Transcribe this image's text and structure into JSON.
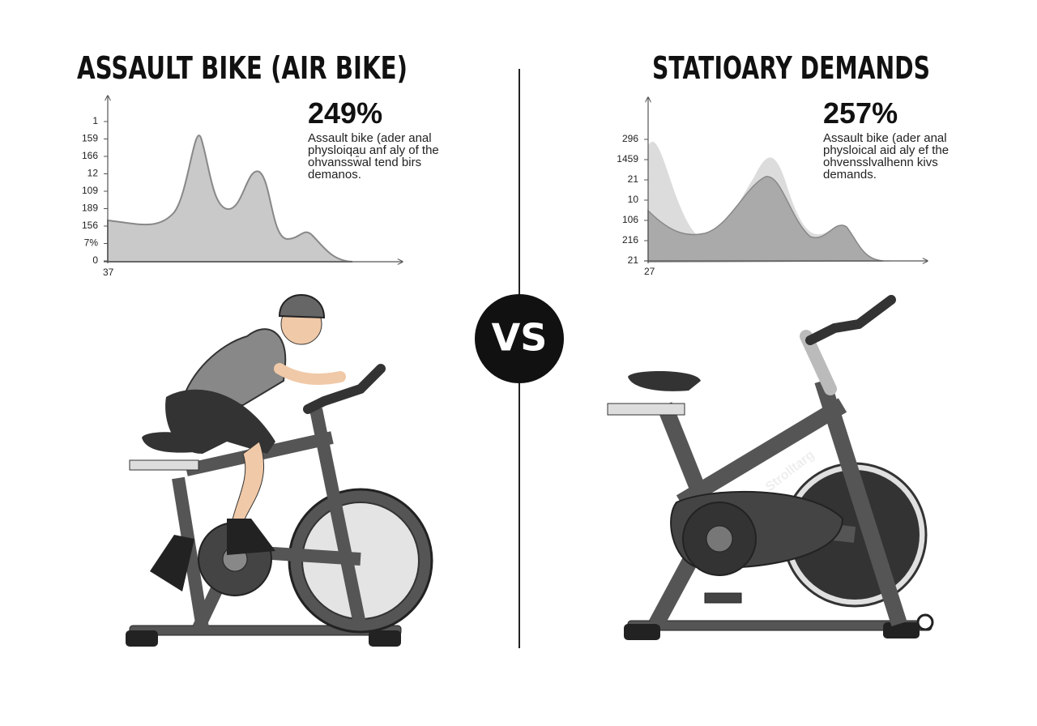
{
  "panels": [
    {
      "title": "ASSAULT BIKE (AIR BIKE)",
      "stat": "249%",
      "description": [
        "Assault bike (ader anal",
        "physloiqau anf aly of the",
        "ohvanssw̄al tend birs",
        "demanos."
      ],
      "y_labels": [
        "1",
        "159",
        "166",
        "12",
        "109",
        "189",
        "156",
        "7%",
        "0"
      ],
      "x_label": "37"
    },
    {
      "title": "STATIOARY DEMANDS",
      "stat": "257%",
      "description": [
        "Assault bike (ader anal",
        "physloical aid aly ef the",
        "ohvensslvalhenn kivs",
        "demands."
      ],
      "y_labels": [
        "296",
        "1459",
        "21",
        "10",
        "106",
        "216",
        "21"
      ],
      "x_label": "27",
      "bike_label": "Strolltarg"
    }
  ],
  "vs": "VS"
}
